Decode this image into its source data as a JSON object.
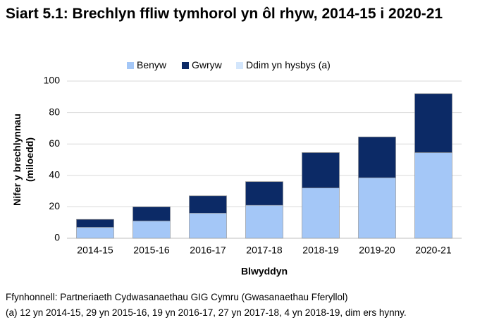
{
  "chart_data": {
    "type": "stacked_bar",
    "title": "Siart 5.1: Brechlyn ffliw tymhorol yn ôl rhyw, 2014-15 i 2020-21",
    "y_label": [
      "Nifer y brechlynnau",
      "(miloedd)"
    ],
    "x_label": "Blwyddyn",
    "categories": [
      "2014-15",
      "2015-16",
      "2016-17",
      "2017-18",
      "2018-19",
      "2019-20",
      "2020-21"
    ],
    "series": [
      {
        "name": "Benyw",
        "color": "#a4c7f7",
        "values": [
          7,
          11,
          16,
          21,
          32,
          38.5,
          54.5
        ]
      },
      {
        "name": "Gwryw",
        "color": "#0c2a66",
        "values": [
          5,
          9,
          11,
          15,
          22.5,
          26,
          37.5
        ]
      },
      {
        "name": "Ddim yn hysbys (a)",
        "color": "#d3e6fc",
        "values": [
          0.012,
          0.029,
          0.019,
          0.027,
          0.004,
          0,
          0
        ]
      }
    ],
    "ylim": [
      0,
      100
    ],
    "yticks": [
      0,
      20,
      40,
      60,
      80,
      100
    ],
    "grid": true,
    "legend": "top",
    "notes": [
      "Ffynhonnell: Partneriaeth Cydwasanaethau GIG Cymru (Gwasanaethau Fferyllol)",
      "(a) 12 yn 2014-15, 29 yn 2015-16, 19 yn 2016-17, 27 yn 2017-18, 4 yn 2018-19, dim ers hynny."
    ]
  }
}
